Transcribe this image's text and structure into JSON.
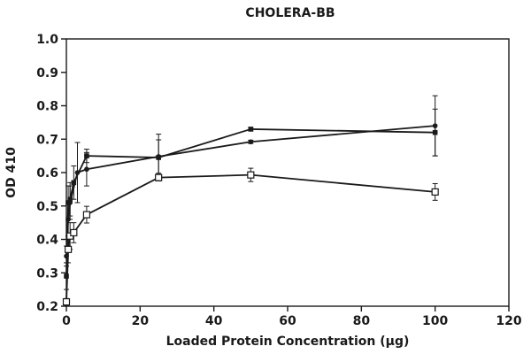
{
  "chart_data": {
    "type": "line",
    "title": "CHOLERA-BB",
    "xlabel": "Loaded Protein Concentration (μg)",
    "ylabel": "OD 410",
    "xlim": [
      0,
      120
    ],
    "ylim": [
      0.2,
      1.0
    ],
    "x_ticks": [
      "0",
      "20",
      "40",
      "60",
      "80",
      "100",
      "120"
    ],
    "y_ticks": [
      "0.2",
      "0.3",
      "0.4",
      "0.5",
      "0.6",
      "0.7",
      "0.8",
      "0.9",
      "1.0"
    ],
    "grid": false,
    "legend": "none",
    "series": [
      {
        "marker": "filled-square",
        "color": "#1a1a1a",
        "x": [
          0,
          0.5,
          1,
          2,
          5.5,
          25,
          50,
          100
        ],
        "y": [
          0.29,
          0.51,
          0.52,
          0.57,
          0.65,
          0.645,
          0.73,
          0.72
        ],
        "error": [
          0.04,
          0.05,
          0.05,
          0.05,
          0.02,
          0.07,
          0.005,
          0.07
        ]
      },
      {
        "marker": "filled-circle",
        "color": "#1a1a1a",
        "x": [
          0,
          0.5,
          1,
          3,
          5.5,
          25,
          50,
          100
        ],
        "y": [
          0.35,
          0.46,
          0.51,
          0.6,
          0.61,
          0.648,
          0.692,
          0.74
        ],
        "error": [
          0.03,
          0.05,
          0.05,
          0.09,
          0.05,
          0.05,
          0.005,
          0.09
        ]
      },
      {
        "marker": "open-square",
        "color": "#1a1a1a",
        "x": [
          0,
          0.5,
          1,
          2,
          5.5,
          25,
          50,
          100
        ],
        "y": [
          0.213,
          0.37,
          0.41,
          0.42,
          0.474,
          0.585,
          0.593,
          0.542
        ],
        "error": [
          0.01,
          0.04,
          0.04,
          0.03,
          0.025,
          0.01,
          0.02,
          0.025
        ]
      }
    ]
  }
}
